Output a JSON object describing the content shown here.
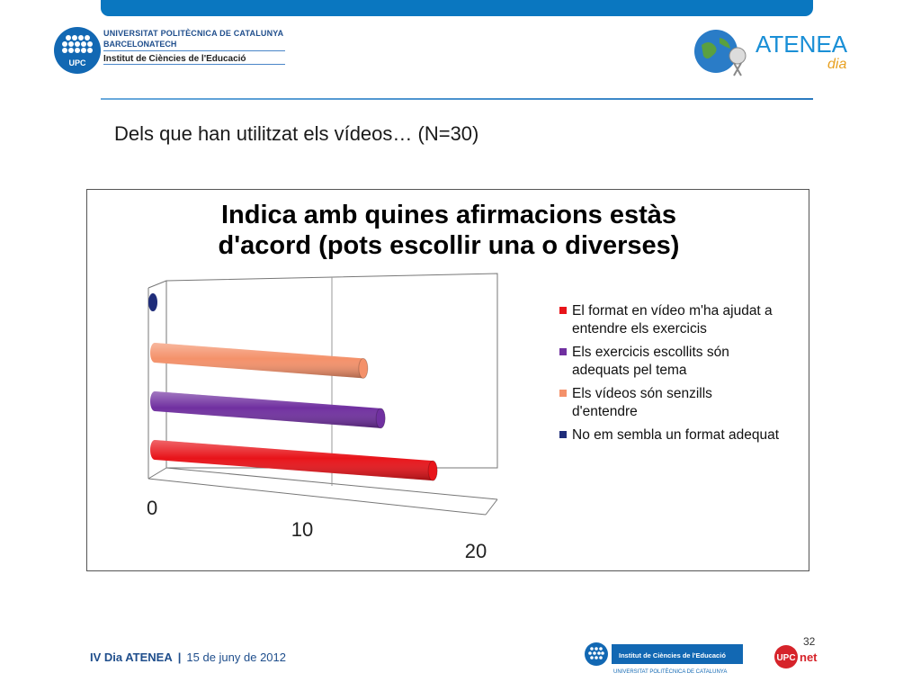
{
  "header": {
    "upc": {
      "line1": "UNIVERSITAT POLITÈCNICA DE CATALUNYA",
      "line2": "BARCELONATECH",
      "line3": "Institut de Ciències de l'Educació",
      "logo_text": "UPC"
    },
    "atenea": {
      "brand": "ATENEA",
      "sub": "dia"
    }
  },
  "slide": {
    "title": "Dels que han utilitzat els vídeos… (N=30)"
  },
  "chart_data": {
    "type": "bar",
    "orientation": "horizontal",
    "style": "3d-cylinder",
    "title_lines": [
      "Indica amb quines afirmacions estàs",
      "d'acord (pots escollir una o diverses)"
    ],
    "xlabel": "",
    "ylabel": "",
    "xlim": [
      0,
      20
    ],
    "x_ticks": [
      "0",
      "10",
      "20"
    ],
    "grid": true,
    "legend_position": "right",
    "series": [
      {
        "name": "El format en vídeo m'ha ajudat a entendre els exercicis",
        "value": 16,
        "color": "#e8141a"
      },
      {
        "name": "Els exercicis escollits són adequats pel tema",
        "value": 13,
        "color": "#7030a0"
      },
      {
        "name": "Els vídeos són senzills d'entendre",
        "value": 12,
        "color": "#f4916a"
      },
      {
        "name": "No em sembla un format adequat",
        "value": 0,
        "color": "#1f2d7a"
      }
    ]
  },
  "footer": {
    "event": "IV Dia ATENEA",
    "separator": "|",
    "date": "15 de juny de 2012",
    "page": "32",
    "ice_label": "Institut de Ciències de l'Educació",
    "ice_sub": "UNIVERSITAT POLITÈCNICA DE CATALUNYA",
    "upcnet_a": "UPC",
    "upcnet_b": "net"
  }
}
